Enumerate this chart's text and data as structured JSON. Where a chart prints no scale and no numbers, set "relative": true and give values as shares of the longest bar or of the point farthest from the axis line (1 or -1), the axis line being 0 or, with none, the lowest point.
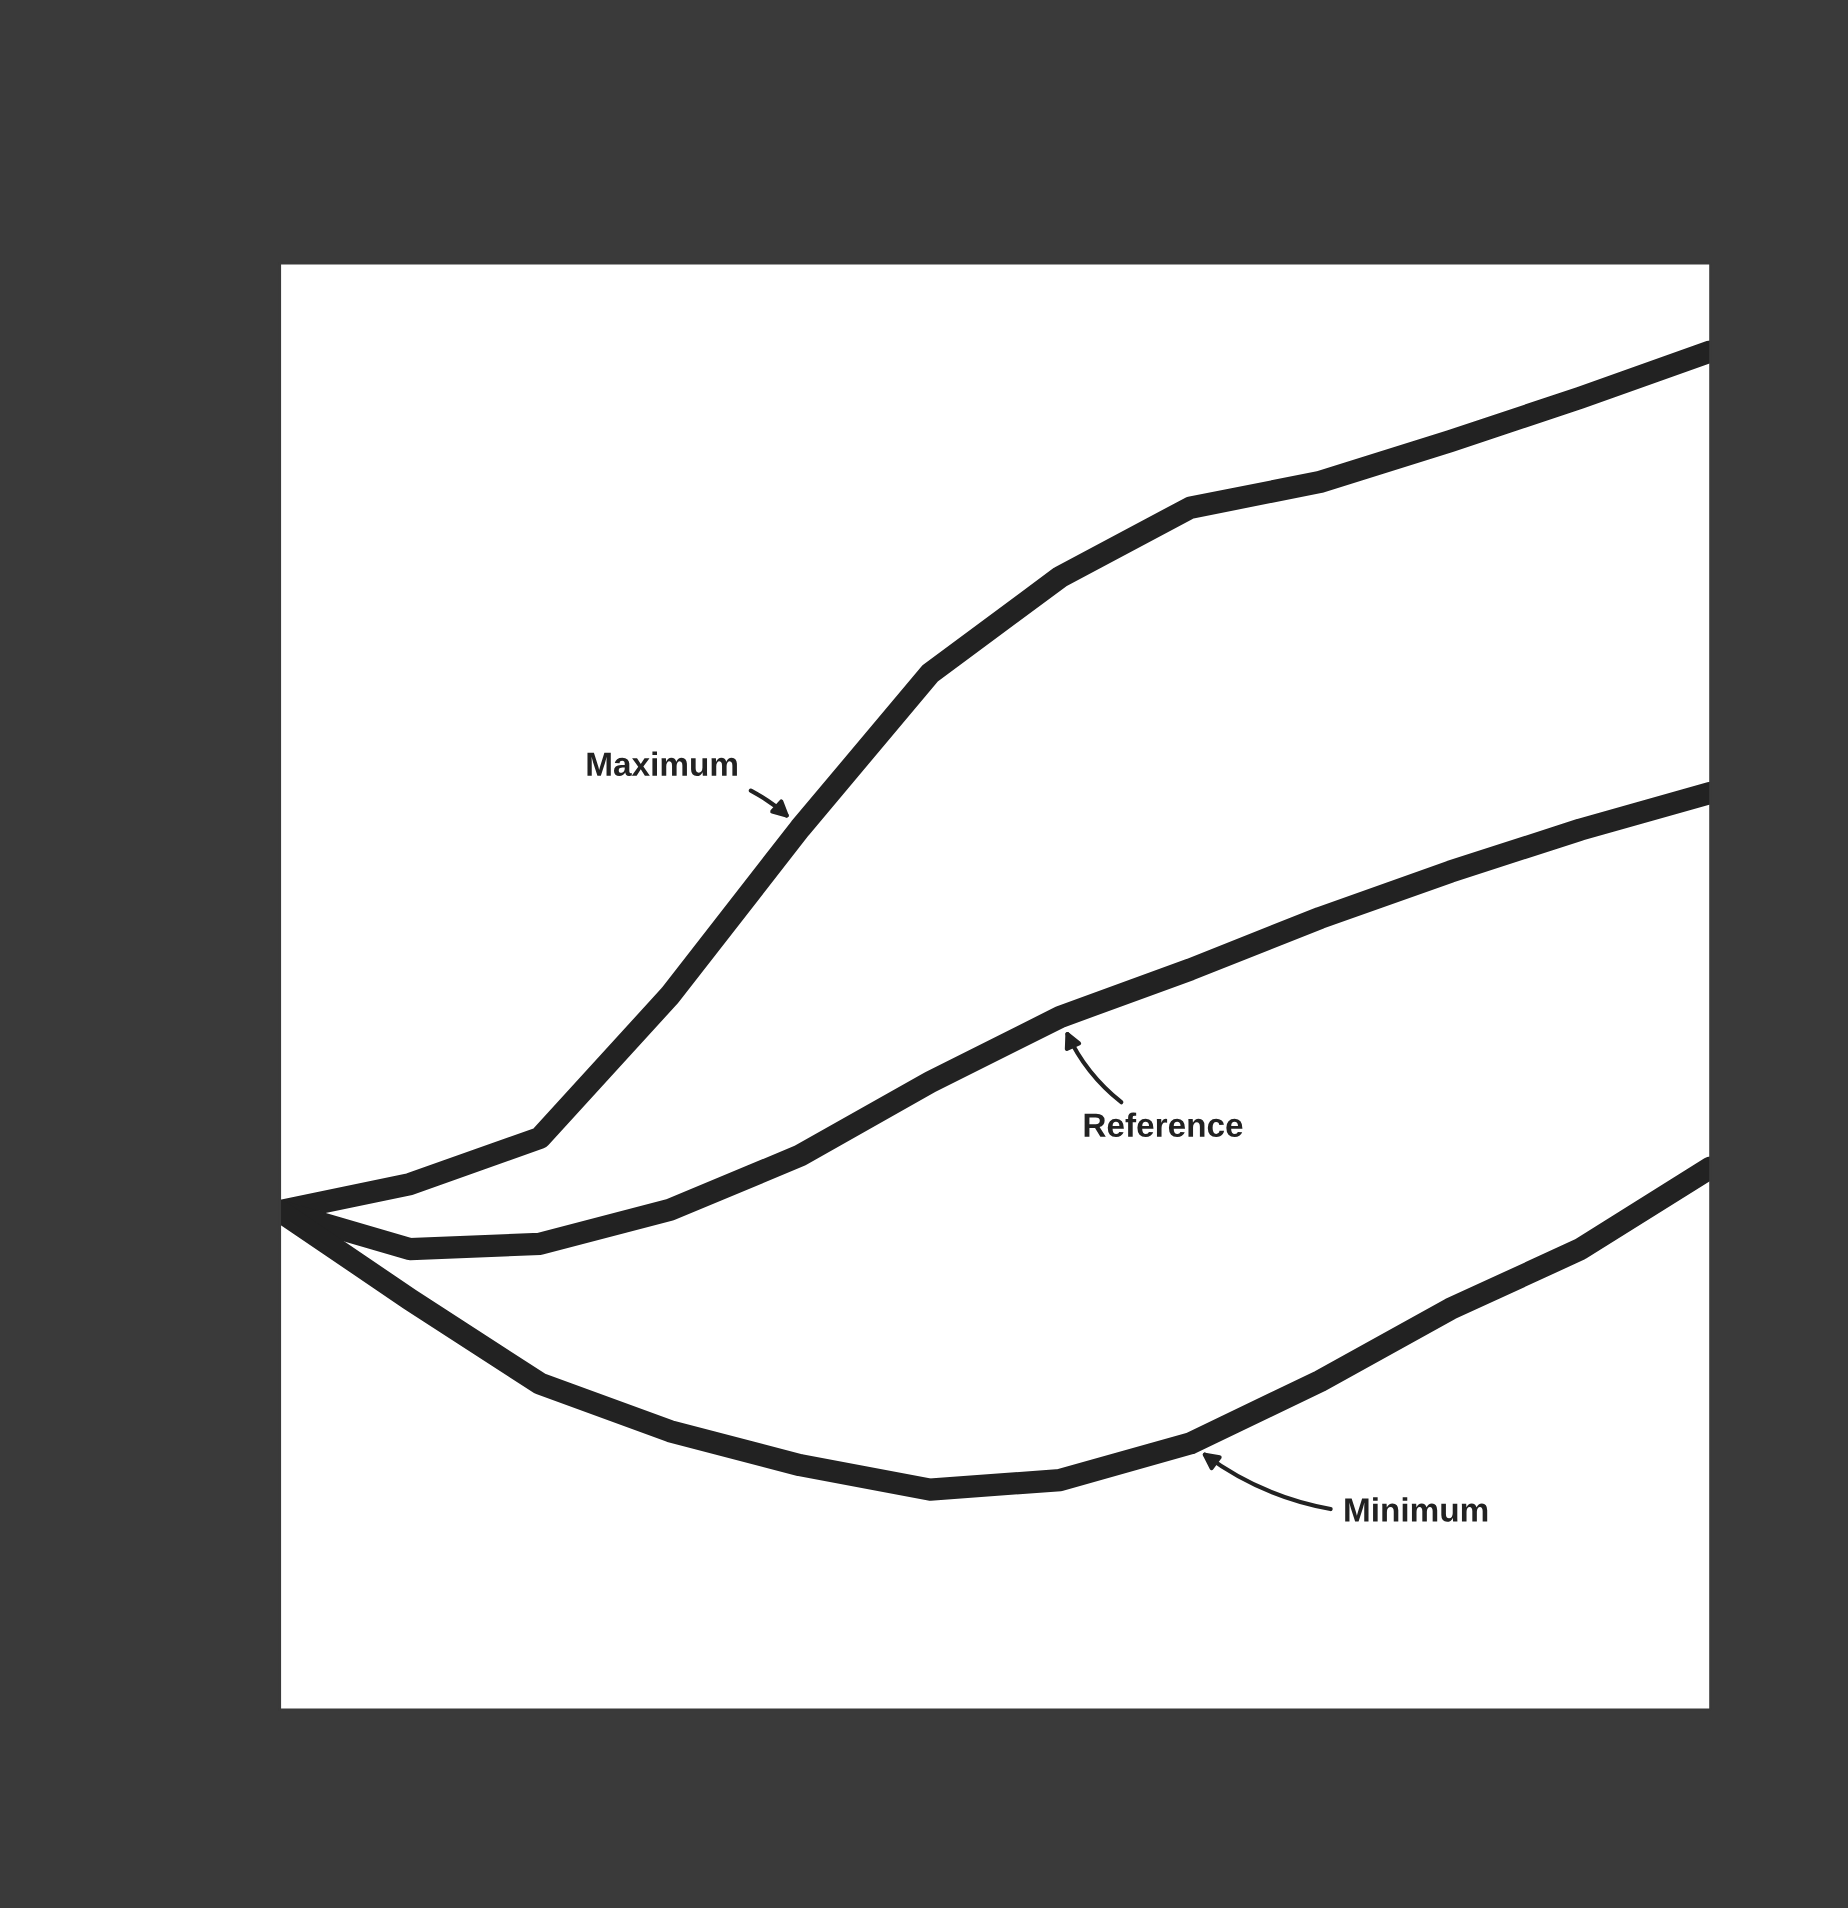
{
  "chart_data": {
    "type": "line",
    "relative": true,
    "marker": "none",
    "line_style": "solid",
    "categories": [
      null,
      null,
      null,
      null,
      null,
      null,
      null,
      null,
      null,
      null,
      null,
      null
    ],
    "series": [
      {
        "name": "Maximum",
        "color": "#222222",
        "values": [
          0.367,
          0.387,
          0.421,
          0.526,
          0.649,
          0.763,
          0.834,
          0.885,
          0.904,
          0.934,
          0.966,
          1
        ]
      },
      {
        "name": "Reference",
        "color": "#222222",
        "values": [
          0.367,
          0.339,
          0.343,
          0.368,
          0.408,
          0.462,
          0.51,
          0.545,
          0.583,
          0.617,
          0.648,
          0.675
        ]
      },
      {
        "name": "Minimum",
        "color": "#222222",
        "values": [
          0.367,
          0.302,
          0.24,
          0.205,
          0.18,
          0.162,
          0.169,
          0.196,
          0.242,
          0.295,
          0.339,
          0.399
        ]
      }
    ]
  }
}
